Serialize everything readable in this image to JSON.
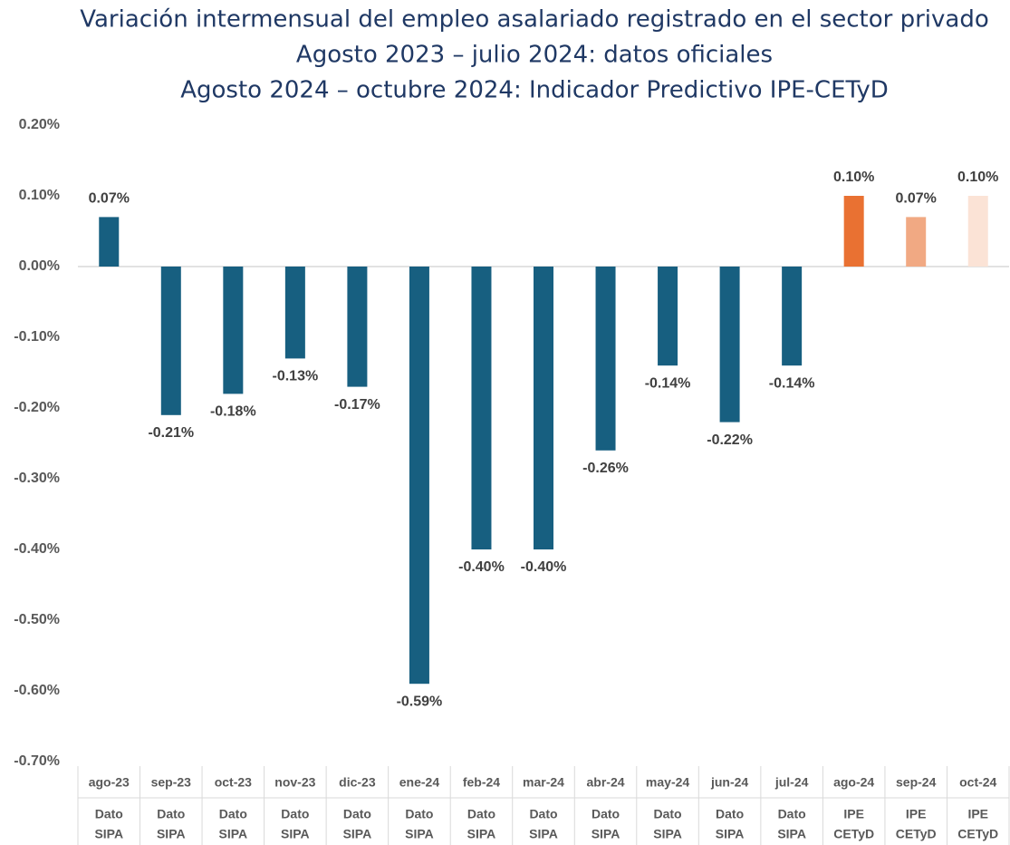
{
  "chart_data": {
    "type": "bar",
    "title": [
      "Variación intermensual del empleo asalariado registrado en el sector privado",
      "Agosto 2023 – julio 2024: datos oficiales",
      "Agosto 2024 – octubre 2024: Indicador Predictivo IPE-CETyD"
    ],
    "categories": [
      "ago-23",
      "sep-23",
      "oct-23",
      "nov-23",
      "dic-23",
      "ene-24",
      "feb-24",
      "mar-24",
      "abr-24",
      "may-24",
      "jun-24",
      "jul-24",
      "ago-24",
      "sep-24",
      "oct-24"
    ],
    "sublabels": [
      [
        "Dato",
        "SIPA"
      ],
      [
        "Dato",
        "SIPA"
      ],
      [
        "Dato",
        "SIPA"
      ],
      [
        "Dato",
        "SIPA"
      ],
      [
        "Dato",
        "SIPA"
      ],
      [
        "Dato",
        "SIPA"
      ],
      [
        "Dato",
        "SIPA"
      ],
      [
        "Dato",
        "SIPA"
      ],
      [
        "Dato",
        "SIPA"
      ],
      [
        "Dato",
        "SIPA"
      ],
      [
        "Dato",
        "SIPA"
      ],
      [
        "Dato",
        "SIPA"
      ],
      [
        "IPE",
        "CETyD"
      ],
      [
        "IPE",
        "CETyD"
      ],
      [
        "IPE",
        "CETyD"
      ]
    ],
    "values": [
      0.07,
      -0.21,
      -0.18,
      -0.13,
      -0.17,
      -0.59,
      -0.4,
      -0.4,
      -0.26,
      -0.14,
      -0.22,
      -0.14,
      0.1,
      0.07,
      0.1
    ],
    "value_labels": [
      "0.07%",
      "-0.21%",
      "-0.18%",
      "-0.13%",
      "-0.17%",
      "-0.59%",
      "-0.40%",
      "-0.40%",
      "-0.26%",
      "-0.14%",
      "-0.22%",
      "-0.14%",
      "0.10%",
      "0.07%",
      "0.10%"
    ],
    "colors": [
      "#175f80",
      "#175f80",
      "#175f80",
      "#175f80",
      "#175f80",
      "#175f80",
      "#175f80",
      "#175f80",
      "#175f80",
      "#175f80",
      "#175f80",
      "#175f80",
      "#e97132",
      "#f1a983",
      "#fbe3d6"
    ],
    "ylim": [
      -0.7,
      0.2
    ],
    "yticks": [
      {
        "value": 0.2,
        "label": "0.20%"
      },
      {
        "value": 0.1,
        "label": "0.10%"
      },
      {
        "value": 0.0,
        "label": "0.00%"
      },
      {
        "value": -0.1,
        "label": "-0.10%"
      },
      {
        "value": -0.2,
        "label": "-0.20%"
      },
      {
        "value": -0.3,
        "label": "-0.30%"
      },
      {
        "value": -0.4,
        "label": "-0.40%"
      },
      {
        "value": -0.5,
        "label": "-0.50%"
      },
      {
        "value": -0.6,
        "label": "-0.60%"
      },
      {
        "value": -0.7,
        "label": "-0.70%"
      }
    ],
    "grid": false
  }
}
